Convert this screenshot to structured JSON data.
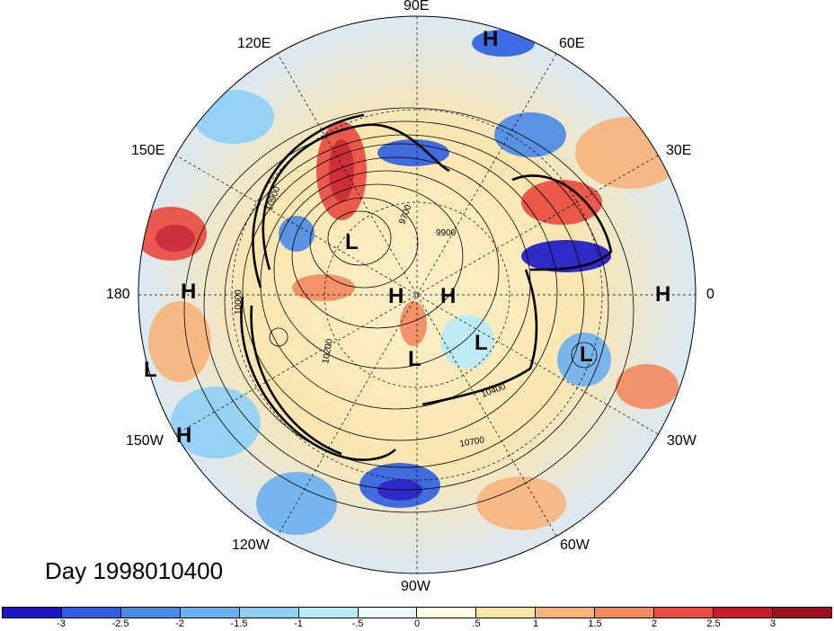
{
  "title": "Day 1998010400",
  "map": {
    "longitude_labels": [
      "90E",
      "60E",
      "30E",
      "0",
      "30W",
      "60W",
      "90W",
      "120W",
      "150W",
      "180",
      "150E",
      "120E"
    ],
    "contour_labels": [
      "9700",
      "9900",
      "10200",
      "10400",
      "10700",
      "10900",
      "10000"
    ],
    "pressure_centers": [
      {
        "type": "H"
      },
      {
        "type": "H"
      },
      {
        "type": "H"
      },
      {
        "type": "H"
      },
      {
        "type": "H"
      },
      {
        "type": "H"
      },
      {
        "type": "L"
      },
      {
        "type": "L"
      },
      {
        "type": "L"
      },
      {
        "type": "L"
      },
      {
        "type": "L"
      }
    ]
  },
  "colorbar": {
    "ticks": [
      "-3",
      "-2.5",
      "-2",
      "-1.5",
      "-1",
      "-.5",
      "0",
      ".5",
      "1",
      "1.5",
      "2",
      "2.5",
      "3"
    ],
    "colors": [
      "#1a16c8",
      "#2e5fe0",
      "#4a8ae8",
      "#6cb0f0",
      "#8ed0f8",
      "#b8ecfc",
      "#e8fafe",
      "#fffce0",
      "#fde6a4",
      "#f8b47c",
      "#f48a60",
      "#ea4a40",
      "#c81c2a",
      "#9a0e1e"
    ]
  }
}
